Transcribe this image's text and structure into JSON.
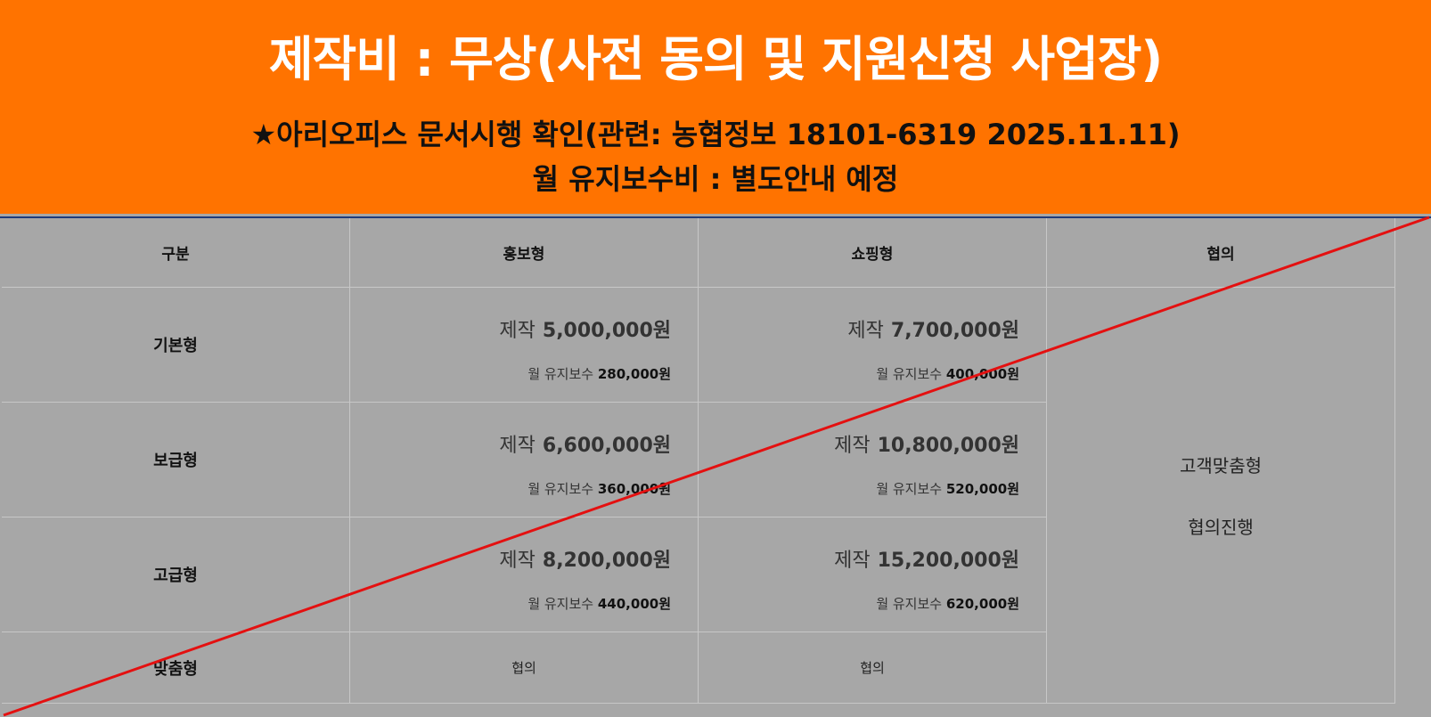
{
  "banner": {
    "headline": "제작비 : 무상(사전 동의 및 지원신청 사업장)",
    "sub1": "★아리오피스 문서시행 확인(관련: 농협정보 18101-6319 2025.11.11)",
    "sub2": "월 유지보수비 : 별도안내 예정"
  },
  "table": {
    "headers": [
      "구분",
      "홍보형",
      "쇼핑형",
      "협의"
    ],
    "rows": [
      {
        "label": "기본형",
        "promo": {
          "make_label": "제작",
          "make": "5,000,000원",
          "maint_label": "월 유지보수",
          "maint": "280,000원"
        },
        "shop": {
          "make_label": "제작",
          "make": "7,700,000원",
          "maint_label": "월 유지보수",
          "maint": "400,000원"
        }
      },
      {
        "label": "보급형",
        "promo": {
          "make_label": "제작",
          "make": "6,600,000원",
          "maint_label": "월 유지보수",
          "maint": "360,000원"
        },
        "shop": {
          "make_label": "제작",
          "make": "10,800,000원",
          "maint_label": "월 유지보수",
          "maint": "520,000원"
        }
      },
      {
        "label": "고급형",
        "promo": {
          "make_label": "제작",
          "make": "8,200,000원",
          "maint_label": "월 유지보수",
          "maint": "440,000원"
        },
        "shop": {
          "make_label": "제작",
          "make": "15,200,000원",
          "maint_label": "월 유지보수",
          "maint": "620,000원"
        }
      },
      {
        "label": "맞춤형",
        "promo_text": "협의",
        "shop_text": "협의"
      }
    ],
    "custom_col": {
      "line1": "고객맞춤형",
      "line2": "협의진행"
    }
  },
  "colors": {
    "banner": "#ff7300",
    "background": "#a7a7a7",
    "strike_line": "#e41010"
  }
}
